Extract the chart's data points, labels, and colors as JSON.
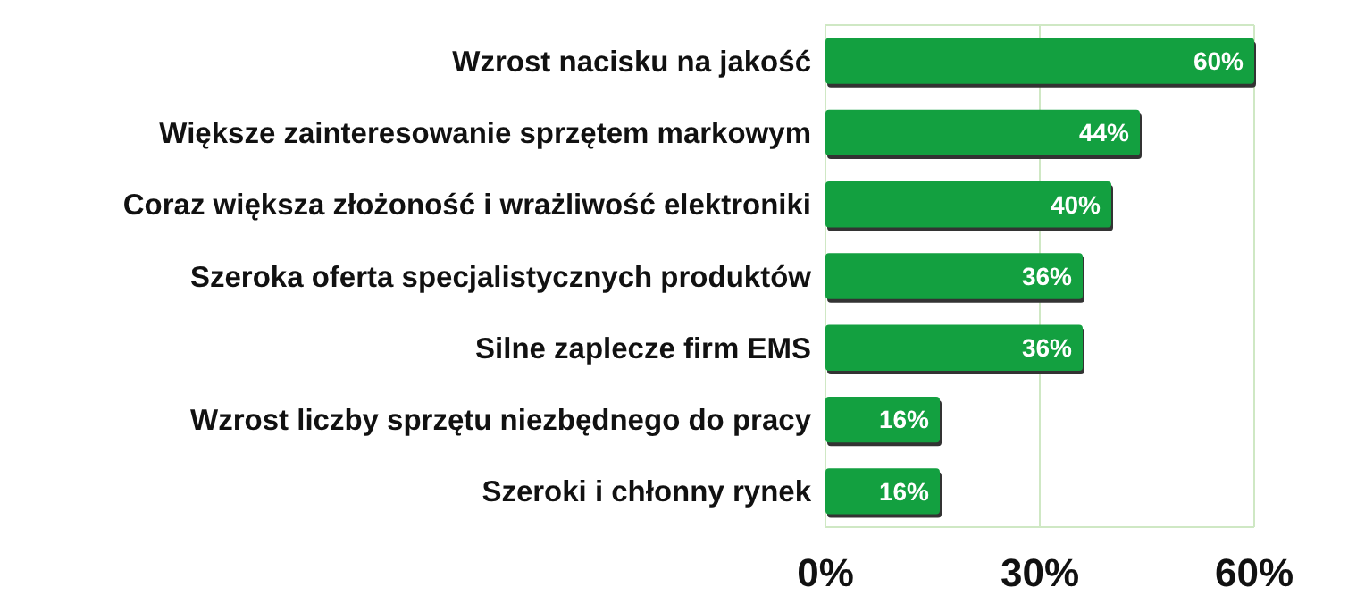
{
  "chart_data": {
    "type": "bar",
    "orientation": "horizontal",
    "categories": [
      "Wzrost nacisku na jakość",
      "Większe zainteresowanie sprzętem markowym",
      "Coraz większa złożoność i wrażliwość elektroniki",
      "Szeroka oferta specjalistycznych produktów",
      "Silne zaplecze firm EMS",
      "Wzrost liczby sprzętu niezbędnego do pracy",
      "Szeroki i chłonny rynek"
    ],
    "values": [
      60,
      44,
      40,
      36,
      36,
      16,
      16
    ],
    "value_labels": [
      "60%",
      "44%",
      "40%",
      "36%",
      "36%",
      "16%",
      "16%"
    ],
    "color": "#13a040",
    "xlim": [
      0,
      60
    ],
    "xticks": [
      {
        "value": 0,
        "label": "0%"
      },
      {
        "value": 30,
        "label": "30%"
      },
      {
        "value": 60,
        "label": "60%"
      }
    ],
    "grid": "x"
  }
}
